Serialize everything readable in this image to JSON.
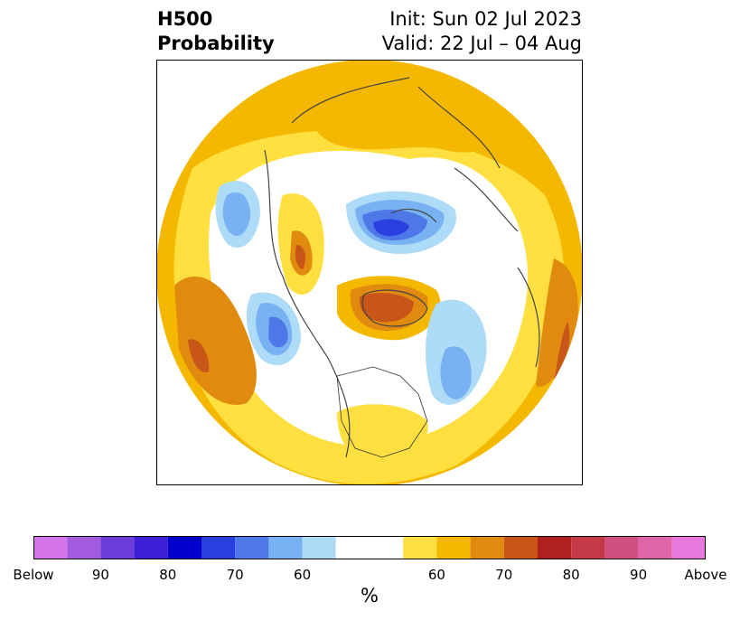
{
  "header": {
    "title_line1": "H500",
    "title_line2": "Probability",
    "init": "Init: Sun 02 Jul 2023",
    "valid": "Valid: 22 Jul – 04 Aug"
  },
  "colorbar": {
    "label": "%",
    "ticks": [
      "Below",
      "90",
      "80",
      "70",
      "60",
      "60",
      "70",
      "80",
      "90",
      "Above"
    ],
    "colors": [
      "#d674e8",
      "#a35be0",
      "#6a3cd8",
      "#3c1fd4",
      "#0000cc",
      "#2a3fe0",
      "#4e78e8",
      "#78b2f2",
      "#aedcf8",
      "#ffffff",
      "#ffe040",
      "#f5b800",
      "#e08a10",
      "#c85618",
      "#b02020",
      "#c43848",
      "#d05080",
      "#e064a8",
      "#e878dc"
    ]
  },
  "map": {
    "projection": "north-polar-stereographic",
    "variable": "500 hPa height probability"
  }
}
